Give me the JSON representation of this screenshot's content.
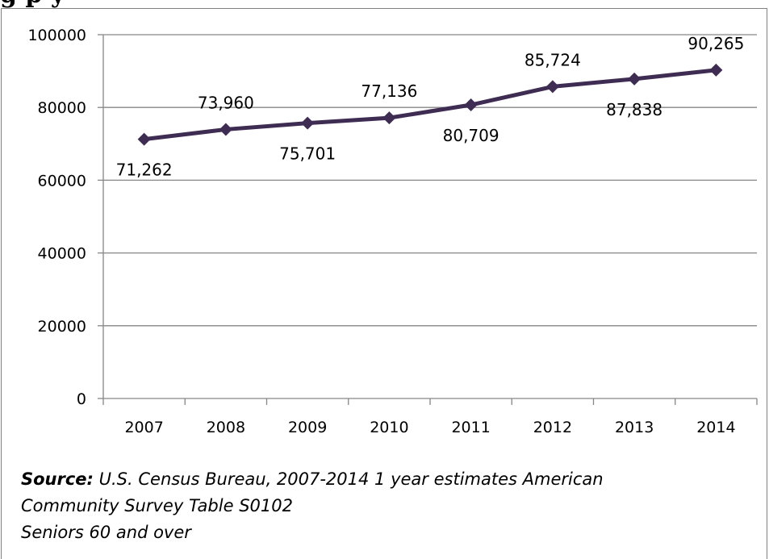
{
  "header": {
    "title_fragment": "g                          p                                        y"
  },
  "chart_data": {
    "type": "line",
    "categories": [
      "2007",
      "2008",
      "2009",
      "2010",
      "2011",
      "2012",
      "2013",
      "2014"
    ],
    "series": [
      {
        "values": [
          71262,
          73960,
          75701,
          77136,
          80709,
          85724,
          87838,
          90265
        ],
        "labels": [
          "71,262",
          "73,960",
          "75,701",
          "77,136",
          "80,709",
          "85,724",
          "87,838",
          "90,265"
        ],
        "color": "#3f2c53",
        "marker": "diamond"
      }
    ],
    "ylim": [
      0,
      100000
    ],
    "yticks": [
      0,
      20000,
      40000,
      60000,
      80000,
      100000
    ],
    "ytick_labels": [
      "0",
      "20000",
      "40000",
      "60000",
      "80000",
      "100000"
    ],
    "grid": true,
    "gridline_color": "#868686",
    "legend": "none"
  },
  "source": {
    "label": "Source:",
    "text": " U.S. Census Bureau, 2007-2014 1 year estimates American",
    "line2": "Community Survey Table S0102",
    "line3": "Seniors 60 and over"
  }
}
